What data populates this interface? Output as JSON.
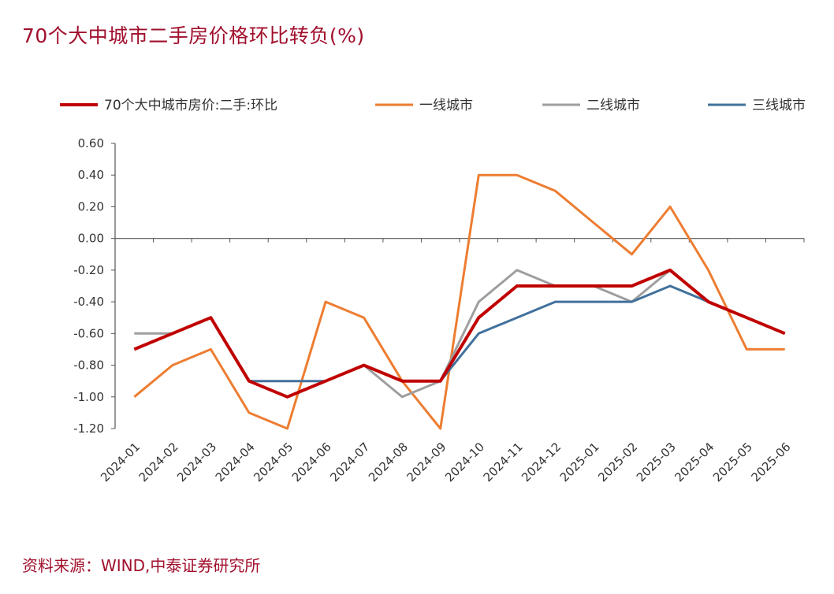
{
  "title": "70个大中城市二手房价格环比转负(%)",
  "source": "资料来源：WIND,中泰证券研究所",
  "chart_data": {
    "type": "line",
    "categories": [
      "2024-01",
      "2024-02",
      "2024-03",
      "2024-04",
      "2024-05",
      "2024-06",
      "2024-07",
      "2024-08",
      "2024-09",
      "2024-10",
      "2024-11",
      "2024-12",
      "2025-01",
      "2025-02",
      "2025-03",
      "2025-04",
      "2025-05",
      "2025-06"
    ],
    "ylim": [
      -1.2,
      0.6
    ],
    "yticks": [
      "0.60",
      "0.40",
      "0.20",
      "0.00",
      "-0.20",
      "-0.40",
      "-0.60",
      "-0.80",
      "-1.00",
      "-1.20"
    ],
    "legend_position": "top",
    "series": [
      {
        "name": "70个大中城市房价:二手:环比",
        "color": "#c00000",
        "values": [
          -0.7,
          -0.6,
          -0.5,
          -0.9,
          -1.0,
          -0.9,
          -0.8,
          -0.9,
          -0.9,
          -0.5,
          -0.3,
          -0.3,
          -0.3,
          -0.3,
          -0.2,
          -0.4,
          -0.5,
          -0.6
        ]
      },
      {
        "name": "一线城市",
        "color": "#ed7d31",
        "values": [
          -1.0,
          -0.8,
          -0.7,
          -1.1,
          -1.2,
          -0.4,
          -0.5,
          -0.9,
          -1.2,
          0.4,
          0.4,
          0.3,
          0.1,
          -0.1,
          0.2,
          -0.2,
          -0.7,
          -0.7
        ]
      },
      {
        "name": "二线城市",
        "color": "#9e9e9e",
        "values": [
          -0.6,
          -0.6,
          -0.5,
          -0.9,
          -1.0,
          -0.9,
          -0.8,
          -1.0,
          -0.9,
          -0.4,
          -0.2,
          -0.3,
          -0.3,
          -0.4,
          -0.2,
          -0.4,
          -0.5,
          -0.6
        ]
      },
      {
        "name": "三线城市",
        "color": "#41719c",
        "values": [
          -0.7,
          -0.6,
          -0.5,
          -0.9,
          -0.9,
          -0.9,
          -0.8,
          -0.9,
          -0.9,
          -0.6,
          -0.5,
          -0.4,
          -0.4,
          -0.4,
          -0.3,
          -0.4,
          -0.5,
          -0.6
        ]
      }
    ]
  }
}
